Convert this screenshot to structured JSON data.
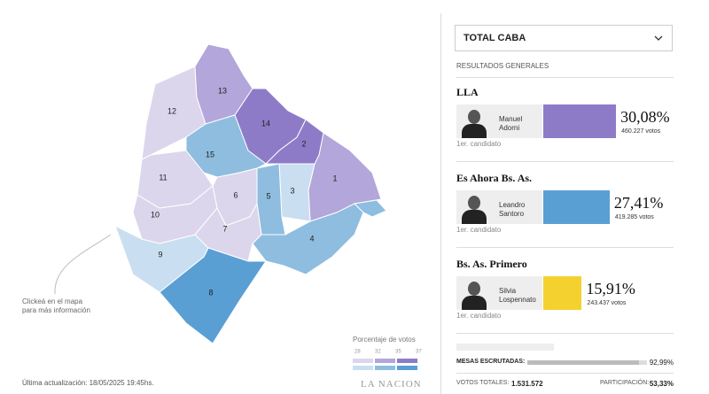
{
  "map": {
    "comunas": [
      {
        "label": "1",
        "color": "#b3a6da"
      },
      {
        "label": "2",
        "color": "#8e7bc8"
      },
      {
        "label": "3",
        "color": "#c9def0"
      },
      {
        "label": "4",
        "color": "#8ebde0"
      },
      {
        "label": "5",
        "color": "#8ebde0"
      },
      {
        "label": "6",
        "color": "#dcd6ec"
      },
      {
        "label": "7",
        "color": "#dcd6ec"
      },
      {
        "label": "8",
        "color": "#5a9fd4"
      },
      {
        "label": "9",
        "color": "#c9def0"
      },
      {
        "label": "10",
        "color": "#dcd6ec"
      },
      {
        "label": "11",
        "color": "#dcd6ec"
      },
      {
        "label": "12",
        "color": "#dcd6ec"
      },
      {
        "label": "13",
        "color": "#b3a6da"
      },
      {
        "label": "14",
        "color": "#8e7bc8"
      },
      {
        "label": "15",
        "color": "#8ebde0"
      }
    ]
  },
  "hint": [
    "Clickeá en el mapa",
    "para más información"
  ],
  "legend": {
    "title": "Porcentaje de votos",
    "ticks": [
      28,
      32,
      35,
      37
    ]
  },
  "updated": "Última actualización: 18/05/2025 19:45hs.",
  "brand": "LA NACION",
  "selector": "TOTAL CABA",
  "section": "RESULTADOS GENERALES",
  "parties": [
    {
      "name": "LLA",
      "candidate": [
        "Manuel",
        "Adorni"
      ],
      "share": {
        "value": 30.08,
        "label": "30,08%"
      },
      "votes": "460.227 votos",
      "rank": "1er. candidato",
      "color": "#8e7bc8"
    },
    {
      "name": "Es Ahora Bs. As.",
      "candidate": [
        "Leandro",
        "Santoro"
      ],
      "share": {
        "value": 27.41,
        "label": "27,41%"
      },
      "votes": "419.285 votos",
      "rank": "1er. candidato",
      "color": "#5a9fd4"
    },
    {
      "name": "Bs. As. Primero",
      "candidate": [
        "Silvia",
        "Lospennato"
      ],
      "share": {
        "value": 15.91,
        "label": "15,91%"
      },
      "votes": "243.437 votos",
      "rank": "1er. candidato",
      "color": "#f5d130"
    }
  ],
  "footer": {
    "counted": {
      "label": "MESAS ESCRUTADAS:",
      "share": {
        "value": 92.99,
        "label": "92,99%"
      }
    },
    "total": {
      "label": "VOTOS TOTALES:",
      "value": "1.531.572"
    },
    "turnout": {
      "label": "PARTICIPACIÓN:",
      "value": "53,33%"
    }
  }
}
